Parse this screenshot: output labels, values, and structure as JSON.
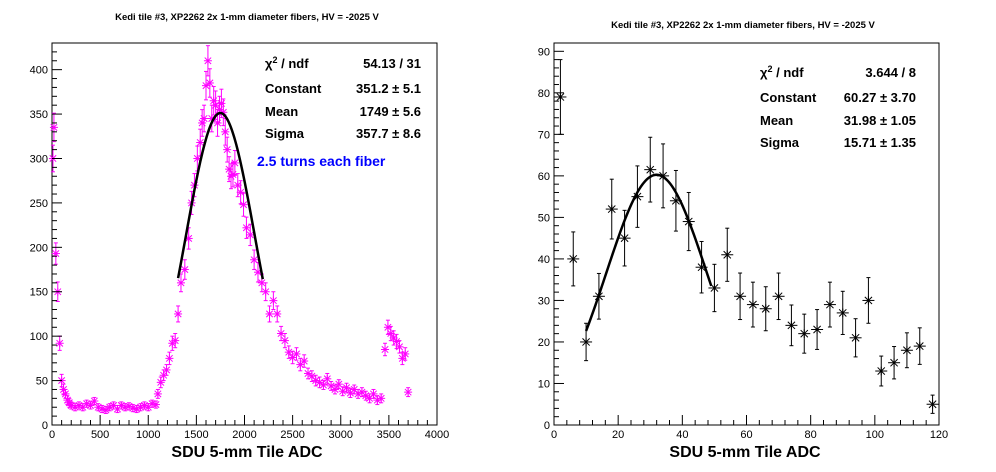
{
  "chart_data": [
    {
      "type": "scatter",
      "title": "Kedi tile #3, XP2262 2x 1-mm diameter fibers, HV = -2025 V",
      "xlabel": "SDU 5-mm Tile ADC",
      "ylabel": "",
      "xlim": [
        0,
        4000
      ],
      "ylim": [
        0,
        430
      ],
      "x_ticks": [
        0,
        500,
        1000,
        1500,
        2000,
        2500,
        3000,
        3500,
        4000
      ],
      "y_ticks": [
        0,
        50,
        100,
        150,
        200,
        250,
        300,
        350,
        400
      ],
      "marker_color": "#ff00ff",
      "fit_color": "#000000",
      "grid": false,
      "stats": {
        "chi2_label": "χ",
        "chi2_sup": "2",
        "chi2_rest": " / ndf",
        "chi2_value": "54.13 / 31",
        "constant_label": "Constant",
        "constant_value": "351.2 ± 5.1",
        "mean_label": "Mean",
        "mean_value": "1749 ± 5.6",
        "sigma_label": "Sigma",
        "sigma_value": "357.7 ± 8.6"
      },
      "annotation": "2.5 turns each fiber",
      "annotation_color": "#0000ff",
      "fit": {
        "constant": 351.2,
        "mean": 1749,
        "sigma": 357.7,
        "range": [
          1310,
          2190
        ]
      },
      "points": [
        [
          10,
          300,
          15
        ],
        [
          20,
          335,
          16
        ],
        [
          40,
          193,
          12
        ],
        [
          60,
          150,
          11
        ],
        [
          80,
          92,
          8
        ],
        [
          100,
          50,
          7
        ],
        [
          120,
          40,
          6
        ],
        [
          140,
          35,
          5
        ],
        [
          160,
          28,
          5
        ],
        [
          180,
          25,
          5
        ],
        [
          200,
          22,
          4
        ],
        [
          240,
          20,
          4
        ],
        [
          280,
          22,
          4
        ],
        [
          320,
          20,
          4
        ],
        [
          360,
          24,
          4
        ],
        [
          400,
          22,
          4
        ],
        [
          440,
          27,
          4
        ],
        [
          480,
          20,
          4
        ],
        [
          520,
          18,
          4
        ],
        [
          560,
          17,
          4
        ],
        [
          600,
          20,
          4
        ],
        [
          640,
          22,
          4
        ],
        [
          680,
          18,
          4
        ],
        [
          720,
          22,
          4
        ],
        [
          760,
          20,
          4
        ],
        [
          800,
          21,
          4
        ],
        [
          840,
          19,
          4
        ],
        [
          880,
          18,
          4
        ],
        [
          920,
          20,
          4
        ],
        [
          960,
          22,
          4
        ],
        [
          1000,
          20,
          4
        ],
        [
          1040,
          24,
          4
        ],
        [
          1080,
          23,
          4
        ],
        [
          1100,
          35,
          5
        ],
        [
          1130,
          48,
          6
        ],
        [
          1160,
          56,
          6
        ],
        [
          1190,
          62,
          6
        ],
        [
          1220,
          75,
          7
        ],
        [
          1250,
          92,
          8
        ],
        [
          1280,
          95,
          8
        ],
        [
          1310,
          125,
          9
        ],
        [
          1340,
          160,
          10
        ],
        [
          1380,
          175,
          11
        ],
        [
          1420,
          210,
          12
        ],
        [
          1450,
          250,
          13
        ],
        [
          1480,
          270,
          13
        ],
        [
          1510,
          300,
          14
        ],
        [
          1540,
          318,
          15
        ],
        [
          1560,
          340,
          15
        ],
        [
          1580,
          345,
          15
        ],
        [
          1600,
          382,
          16
        ],
        [
          1620,
          410,
          17
        ],
        [
          1640,
          385,
          16
        ],
        [
          1660,
          345,
          15
        ],
        [
          1680,
          365,
          16
        ],
        [
          1700,
          360,
          16
        ],
        [
          1720,
          340,
          15
        ],
        [
          1740,
          355,
          15
        ],
        [
          1760,
          362,
          16
        ],
        [
          1780,
          352,
          15
        ],
        [
          1800,
          330,
          15
        ],
        [
          1820,
          310,
          14
        ],
        [
          1840,
          288,
          14
        ],
        [
          1860,
          280,
          14
        ],
        [
          1880,
          282,
          14
        ],
        [
          1900,
          295,
          14
        ],
        [
          1930,
          270,
          13
        ],
        [
          1960,
          262,
          13
        ],
        [
          1990,
          248,
          13
        ],
        [
          2020,
          222,
          12
        ],
        [
          2060,
          214,
          12
        ],
        [
          2100,
          186,
          11
        ],
        [
          2140,
          172,
          11
        ],
        [
          2180,
          160,
          10
        ],
        [
          2220,
          150,
          10
        ],
        [
          2260,
          125,
          9
        ],
        [
          2300,
          140,
          10
        ],
        [
          2340,
          125,
          9
        ],
        [
          2380,
          103,
          8
        ],
        [
          2420,
          95,
          8
        ],
        [
          2460,
          82,
          7
        ],
        [
          2500,
          76,
          7
        ],
        [
          2540,
          80,
          7
        ],
        [
          2580,
          68,
          7
        ],
        [
          2620,
          72,
          7
        ],
        [
          2660,
          58,
          6
        ],
        [
          2700,
          55,
          6
        ],
        [
          2740,
          50,
          6
        ],
        [
          2780,
          48,
          6
        ],
        [
          2820,
          45,
          5
        ],
        [
          2860,
          52,
          6
        ],
        [
          2900,
          44,
          5
        ],
        [
          2940,
          40,
          5
        ],
        [
          2980,
          46,
          5
        ],
        [
          3020,
          38,
          5
        ],
        [
          3060,
          42,
          5
        ],
        [
          3100,
          36,
          5
        ],
        [
          3140,
          40,
          5
        ],
        [
          3180,
          35,
          5
        ],
        [
          3220,
          37,
          5
        ],
        [
          3260,
          33,
          5
        ],
        [
          3300,
          30,
          5
        ],
        [
          3340,
          35,
          5
        ],
        [
          3380,
          28,
          5
        ],
        [
          3420,
          30,
          5
        ],
        [
          3460,
          85,
          7
        ],
        [
          3490,
          110,
          8
        ],
        [
          3520,
          103,
          8
        ],
        [
          3550,
          98,
          8
        ],
        [
          3580,
          94,
          8
        ],
        [
          3610,
          88,
          7
        ],
        [
          3640,
          75,
          7
        ],
        [
          3670,
          80,
          7
        ],
        [
          3700,
          37,
          5
        ]
      ]
    },
    {
      "type": "scatter",
      "title": "Kedi tile #3, XP2262 2x 1-mm diameter fibers, HV = -2025 V",
      "xlabel": "SDU 5-mm Tile ADC",
      "ylabel": "",
      "xlim": [
        0,
        120
      ],
      "ylim": [
        0,
        92
      ],
      "x_ticks": [
        0,
        20,
        40,
        60,
        80,
        100,
        120
      ],
      "y_ticks": [
        0,
        10,
        20,
        30,
        40,
        50,
        60,
        70,
        80,
        90
      ],
      "marker_color": "#000000",
      "fit_color": "#000000",
      "grid": false,
      "stats": {
        "chi2_label": "χ",
        "chi2_sup": "2",
        "chi2_rest": " / ndf",
        "chi2_value": "3.644 / 8",
        "constant_label": "Constant",
        "constant_value": "60.27 ± 3.70",
        "mean_label": "Mean",
        "mean_value": "31.98 ± 1.05",
        "sigma_label": "Sigma",
        "sigma_value": "15.71 ± 1.35"
      },
      "fit": {
        "constant": 60.27,
        "mean": 31.98,
        "sigma": 15.71,
        "range": [
          10,
          49
        ]
      },
      "points": [
        [
          2,
          79,
          9
        ],
        [
          6,
          40,
          6.5
        ],
        [
          10,
          20,
          4.5
        ],
        [
          14,
          31,
          5.5
        ],
        [
          18,
          52,
          7.2
        ],
        [
          22,
          45,
          6.7
        ],
        [
          26,
          55,
          7.4
        ],
        [
          30,
          61.5,
          7.8
        ],
        [
          34,
          60,
          7.7
        ],
        [
          38,
          54,
          7.3
        ],
        [
          42,
          49,
          7
        ],
        [
          46,
          38,
          6.2
        ],
        [
          50,
          33,
          5.7
        ],
        [
          54,
          41,
          6.4
        ],
        [
          58,
          31,
          5.6
        ],
        [
          62,
          29,
          5.4
        ],
        [
          66,
          28,
          5.3
        ],
        [
          70,
          31,
          5.6
        ],
        [
          74,
          24,
          4.9
        ],
        [
          78,
          22,
          4.7
        ],
        [
          82,
          23,
          4.8
        ],
        [
          86,
          29,
          5.4
        ],
        [
          90,
          27,
          5.2
        ],
        [
          94,
          21,
          4.6
        ],
        [
          98,
          30,
          5.5
        ],
        [
          102,
          13,
          3.6
        ],
        [
          106,
          15,
          3.9
        ],
        [
          110,
          18,
          4.2
        ],
        [
          114,
          19,
          4.4
        ],
        [
          118,
          5,
          2.2
        ]
      ]
    }
  ]
}
